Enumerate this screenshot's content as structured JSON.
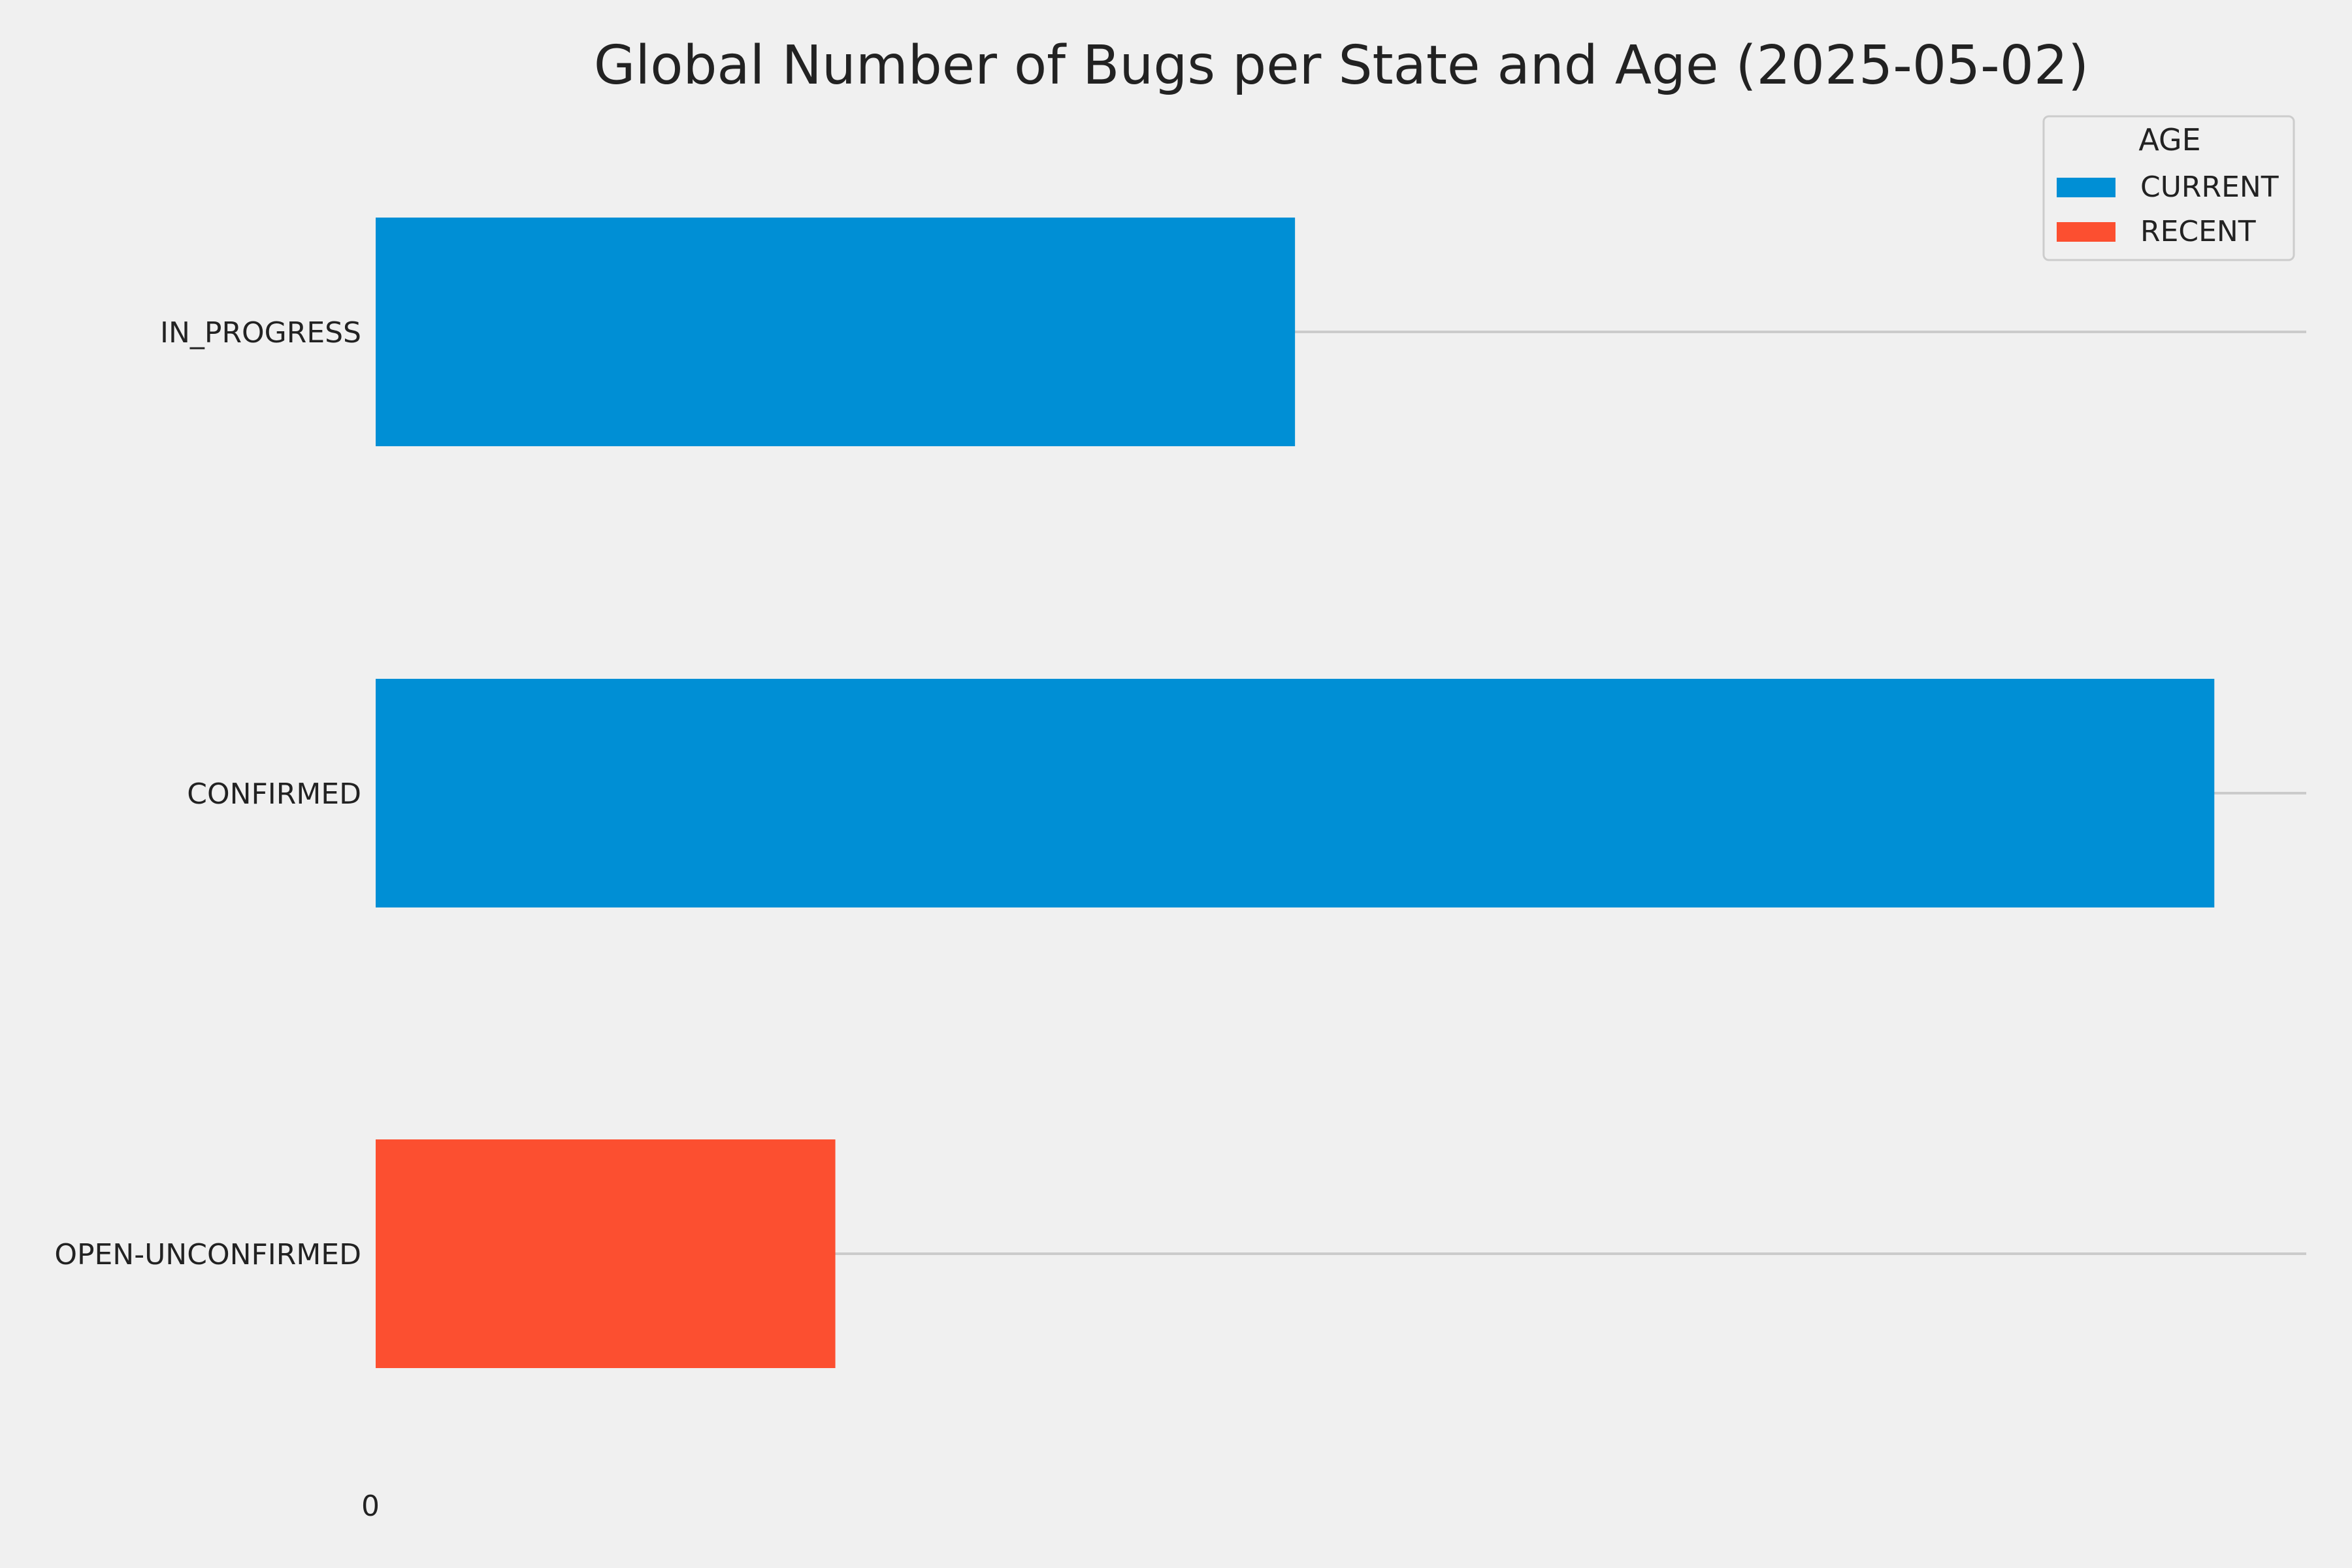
{
  "chart_data": {
    "type": "bar",
    "orientation": "horizontal",
    "title": "Global Number of Bugs per State and Age (2025-05-02)",
    "xlabel": "",
    "ylabel": "",
    "categories": [
      "IN_PROGRESS",
      "CONFIRMED",
      "OPEN-UNCONFIRMED"
    ],
    "x_tick_labels": [
      "0"
    ],
    "grid": "horizontal lines at each category",
    "legend": {
      "title": "AGE",
      "placement": "top-right"
    },
    "series": [
      {
        "name": "CURRENT",
        "color": "#008fd5",
        "values": [
          2,
          4,
          0
        ]
      },
      {
        "name": "RECENT",
        "color": "#fc4f30",
        "values": [
          0,
          0,
          1
        ]
      }
    ],
    "xlim": [
      0,
      4.2
    ]
  }
}
